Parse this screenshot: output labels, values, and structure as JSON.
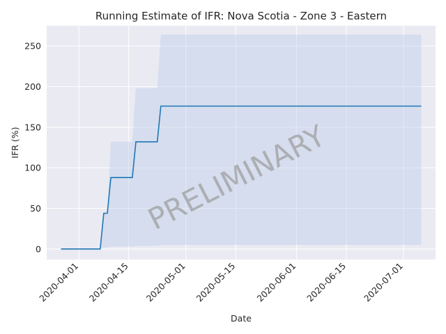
{
  "chart_data": {
    "type": "line",
    "title": "Running Estimate of IFR: Nova Scotia - Zone 3 - Eastern",
    "xlabel": "Date",
    "ylabel": "IFR (%)",
    "x_range": [
      "2020-03-23",
      "2020-07-10"
    ],
    "ylim": [
      -13,
      275
    ],
    "y_ticks": [
      0,
      50,
      100,
      150,
      200,
      250
    ],
    "x_ticks": [
      "2020-04-01",
      "2020-04-15",
      "2020-05-01",
      "2020-05-15",
      "2020-06-01",
      "2020-06-15",
      "2020-07-01"
    ],
    "grid": true,
    "watermark": "PRELIMINARY",
    "colors": {
      "background": "#eaeaf2",
      "grid": "#ffffff",
      "line": "#1f77b4",
      "band": "#aec7e8"
    },
    "series": [
      {
        "values": [
          {
            "x": "2020-03-27",
            "y": 0
          },
          {
            "x": "2020-04-07",
            "y": 0
          },
          {
            "x": "2020-04-08",
            "y": 44
          },
          {
            "x": "2020-04-09",
            "y": 44
          },
          {
            "x": "2020-04-10",
            "y": 88
          },
          {
            "x": "2020-04-16",
            "y": 88
          },
          {
            "x": "2020-04-17",
            "y": 132
          },
          {
            "x": "2020-04-23",
            "y": 132
          },
          {
            "x": "2020-04-24",
            "y": 176
          },
          {
            "x": "2020-07-06",
            "y": 176
          }
        ]
      }
    ],
    "band": [
      {
        "x": "2020-03-27",
        "lo": 0,
        "hi": 0
      },
      {
        "x": "2020-04-07",
        "lo": 0,
        "hi": 0
      },
      {
        "x": "2020-04-08",
        "lo": 2,
        "hi": 44
      },
      {
        "x": "2020-04-09",
        "lo": 2,
        "hi": 44
      },
      {
        "x": "2020-04-10",
        "lo": 3,
        "hi": 132
      },
      {
        "x": "2020-04-16",
        "lo": 3,
        "hi": 132
      },
      {
        "x": "2020-04-17",
        "lo": 4,
        "hi": 198
      },
      {
        "x": "2020-04-23",
        "lo": 4,
        "hi": 198
      },
      {
        "x": "2020-04-24",
        "lo": 5,
        "hi": 264
      },
      {
        "x": "2020-07-06",
        "lo": 5,
        "hi": 264
      }
    ]
  }
}
